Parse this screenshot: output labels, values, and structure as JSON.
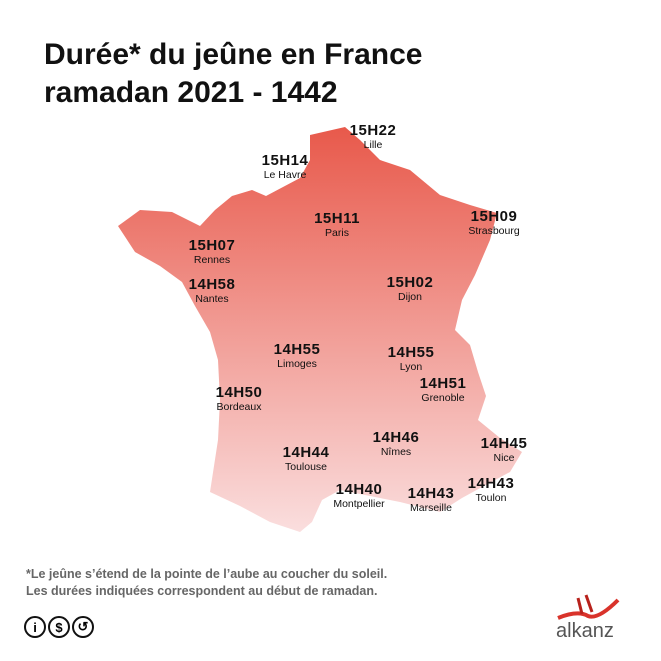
{
  "title": {
    "line1": "Durée* du jeûne en France",
    "line2": "ramadan 2021 - 1442"
  },
  "colors": {
    "map_top": "#e8594b",
    "map_bottom": "#f9dcdc",
    "logo_red": "#d9332b"
  },
  "cities": [
    {
      "name": "Lille",
      "time": "15H22"
    },
    {
      "name": "Le Havre",
      "time": "15H14"
    },
    {
      "name": "Paris",
      "time": "15H11"
    },
    {
      "name": "Strasbourg",
      "time": "15H09"
    },
    {
      "name": "Rennes",
      "time": "15H07"
    },
    {
      "name": "Nantes",
      "time": "14H58"
    },
    {
      "name": "Dijon",
      "time": "15H02"
    },
    {
      "name": "Limoges",
      "time": "14H55"
    },
    {
      "name": "Lyon",
      "time": "14H55"
    },
    {
      "name": "Bordeaux",
      "time": "14H50"
    },
    {
      "name": "Grenoble",
      "time": "14H51"
    },
    {
      "name": "Toulouse",
      "time": "14H44"
    },
    {
      "name": "Nîmes",
      "time": "14H46"
    },
    {
      "name": "Nice",
      "time": "14H45"
    },
    {
      "name": "Montpellier",
      "time": "14H40"
    },
    {
      "name": "Marseille",
      "time": "14H43"
    },
    {
      "name": "Toulon",
      "time": "14H43"
    }
  ],
  "footnote": {
    "line1": "*Le jeûne s’étend de la pointe de l’aube au coucher du soleil.",
    "line2": "Les durées indiquées correspondent au début de ramadan."
  },
  "license_icons": [
    "cc-by-icon",
    "cc-nc-icon",
    "cc-sa-icon"
  ],
  "logo": {
    "text": "alkanz"
  }
}
